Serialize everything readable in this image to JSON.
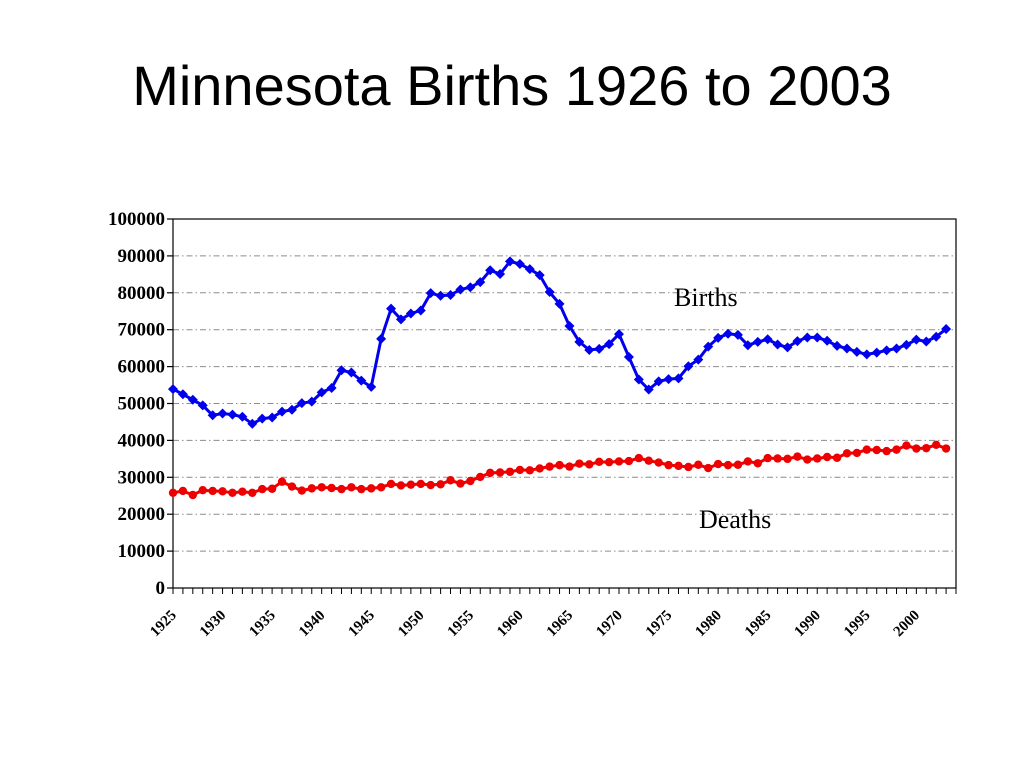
{
  "slide": {
    "title": "Minnesota Births 1926 to 2003"
  },
  "chart_data": {
    "type": "line",
    "title": "",
    "xlabel": "",
    "ylabel": "",
    "xlim": [
      1925,
      2004
    ],
    "ylim": [
      0,
      100000
    ],
    "yticks": [
      0,
      10000,
      20000,
      30000,
      40000,
      50000,
      60000,
      70000,
      80000,
      90000,
      100000
    ],
    "xtick_labels": [
      "1925",
      "1930",
      "1935",
      "1940",
      "1945",
      "1950",
      "1955",
      "1960",
      "1965",
      "1970",
      "1975",
      "1980",
      "1985",
      "1990",
      "1995",
      "2000"
    ],
    "grid": true,
    "legend": "none",
    "annotations": [
      {
        "text": "Births",
        "series": "Births"
      },
      {
        "text": "Deaths",
        "series": "Deaths"
      }
    ],
    "x": [
      1925,
      1926,
      1927,
      1928,
      1929,
      1930,
      1931,
      1932,
      1933,
      1934,
      1935,
      1936,
      1937,
      1938,
      1939,
      1940,
      1941,
      1942,
      1943,
      1944,
      1945,
      1946,
      1947,
      1948,
      1949,
      1950,
      1951,
      1952,
      1953,
      1954,
      1955,
      1956,
      1957,
      1958,
      1959,
      1960,
      1961,
      1962,
      1963,
      1964,
      1965,
      1966,
      1967,
      1968,
      1969,
      1970,
      1971,
      1972,
      1973,
      1974,
      1975,
      1976,
      1977,
      1978,
      1979,
      1980,
      1981,
      1982,
      1983,
      1984,
      1985,
      1986,
      1987,
      1988,
      1989,
      1990,
      1991,
      1992,
      1993,
      1994,
      1995,
      1996,
      1997,
      1998,
      1999,
      2000,
      2001,
      2002,
      2003
    ],
    "series": [
      {
        "name": "Births",
        "color": "#0000ee",
        "marker": "diamond",
        "values": [
          53900,
          52500,
          51000,
          49500,
          46800,
          47300,
          47000,
          46400,
          44500,
          45900,
          46200,
          47800,
          48300,
          50100,
          50500,
          53000,
          54200,
          59000,
          58400,
          56200,
          54500,
          67500,
          75700,
          72800,
          74400,
          75200,
          79900,
          79200,
          79400,
          80900,
          81500,
          82900,
          86100,
          85100,
          88500,
          87800,
          86400,
          84800,
          80200,
          77000,
          71000,
          66700,
          64500,
          64800,
          66100,
          68800,
          62600,
          56500,
          53800,
          56000,
          56600,
          56800,
          60100,
          61900,
          65400,
          67800,
          68900,
          68600,
          65800,
          66700,
          67400,
          66000,
          65200,
          66900,
          67900,
          67900,
          67000,
          65600,
          64900,
          64000,
          63300,
          63800,
          64400,
          64900,
          65900,
          67300,
          66800,
          68100,
          70200
        ]
      },
      {
        "name": "Deaths",
        "color": "#ee0000",
        "marker": "circle",
        "values": [
          25800,
          26300,
          25200,
          26500,
          26300,
          26200,
          25800,
          26100,
          25800,
          26800,
          26900,
          28800,
          27500,
          26400,
          27000,
          27300,
          27100,
          26800,
          27300,
          26800,
          27000,
          27300,
          28200,
          27800,
          28000,
          28200,
          27900,
          28100,
          29200,
          28300,
          29000,
          30100,
          31200,
          31300,
          31500,
          32000,
          31900,
          32400,
          32900,
          33300,
          32900,
          33700,
          33500,
          34200,
          34100,
          34300,
          34400,
          35200,
          34500,
          34000,
          33300,
          33100,
          32800,
          33400,
          32500,
          33600,
          33300,
          33400,
          34300,
          33800,
          35200,
          35100,
          35000,
          35600,
          34800,
          35100,
          35500,
          35300,
          36500,
          36600,
          37500,
          37400,
          37100,
          37500,
          38600,
          37800,
          37900,
          38800,
          37800
        ]
      }
    ]
  }
}
